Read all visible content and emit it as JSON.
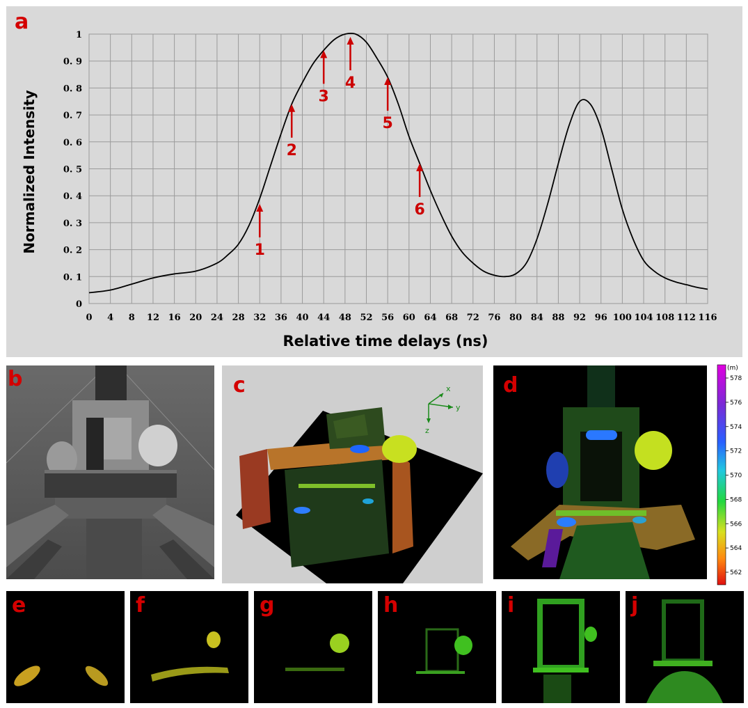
{
  "panels": {
    "a": "a",
    "b": "b",
    "c": "c",
    "d": "d",
    "e": "e",
    "f": "f",
    "g": "g",
    "h": "h",
    "i": "i",
    "j": "j"
  },
  "chart_data": {
    "type": "line",
    "xlabel": "Relative time delays (ns)",
    "ylabel": "Normalized Intensity",
    "xlim": [
      0,
      116
    ],
    "ylim": [
      0,
      1
    ],
    "x_ticks": [
      0,
      4,
      8,
      12,
      16,
      20,
      24,
      28,
      32,
      36,
      40,
      44,
      48,
      52,
      56,
      60,
      64,
      68,
      72,
      76,
      80,
      84,
      88,
      92,
      96,
      100,
      104,
      108,
      112,
      116
    ],
    "y_ticks": [
      0,
      0.1,
      0.2,
      0.3,
      0.4,
      0.5,
      0.6,
      0.7,
      0.8,
      0.9,
      1
    ],
    "y_tick_labels": [
      "0",
      "0. 1",
      "0. 2",
      "0. 3",
      "0. 4",
      "0. 5",
      "0. 6",
      "0. 7",
      "0. 8",
      "0. 9",
      "1"
    ],
    "grid": true,
    "series": [
      {
        "x": [
          0,
          4,
          8,
          12,
          16,
          20,
          24,
          26,
          28,
          30,
          32,
          34,
          36,
          38,
          40,
          42,
          44,
          46,
          48,
          50,
          52,
          54,
          56,
          58,
          60,
          62,
          64,
          66,
          68,
          70,
          72,
          74,
          76,
          78,
          80,
          82,
          84,
          86,
          88,
          90,
          92,
          94,
          96,
          98,
          100,
          102,
          104,
          106,
          108,
          110,
          112,
          114,
          116
        ],
        "y": [
          0.04,
          0.05,
          0.072,
          0.095,
          0.11,
          0.12,
          0.15,
          0.18,
          0.22,
          0.29,
          0.39,
          0.51,
          0.63,
          0.74,
          0.82,
          0.89,
          0.94,
          0.98,
          1.0,
          1.0,
          0.97,
          0.91,
          0.84,
          0.74,
          0.62,
          0.52,
          0.42,
          0.33,
          0.25,
          0.19,
          0.15,
          0.12,
          0.105,
          0.1,
          0.11,
          0.15,
          0.24,
          0.37,
          0.52,
          0.66,
          0.75,
          0.74,
          0.65,
          0.5,
          0.35,
          0.24,
          0.16,
          0.12,
          0.095,
          0.08,
          0.07,
          0.06,
          0.053
        ]
      }
    ],
    "annotations": [
      {
        "label": "1",
        "x": 32,
        "y": 0.38
      },
      {
        "label": "2",
        "x": 38,
        "y": 0.75
      },
      {
        "label": "3",
        "x": 44,
        "y": 0.95
      },
      {
        "label": "4",
        "x": 49,
        "y": 1.0
      },
      {
        "label": "5",
        "x": 56,
        "y": 0.85
      },
      {
        "label": "6",
        "x": 62,
        "y": 0.53
      }
    ]
  },
  "colorbar": {
    "unit": "(m)",
    "ticks": [
      "578",
      "576",
      "574",
      "572",
      "570",
      "568",
      "566",
      "564",
      "562"
    ]
  },
  "axis3d": {
    "x": "x",
    "y": "y",
    "z": "z"
  }
}
